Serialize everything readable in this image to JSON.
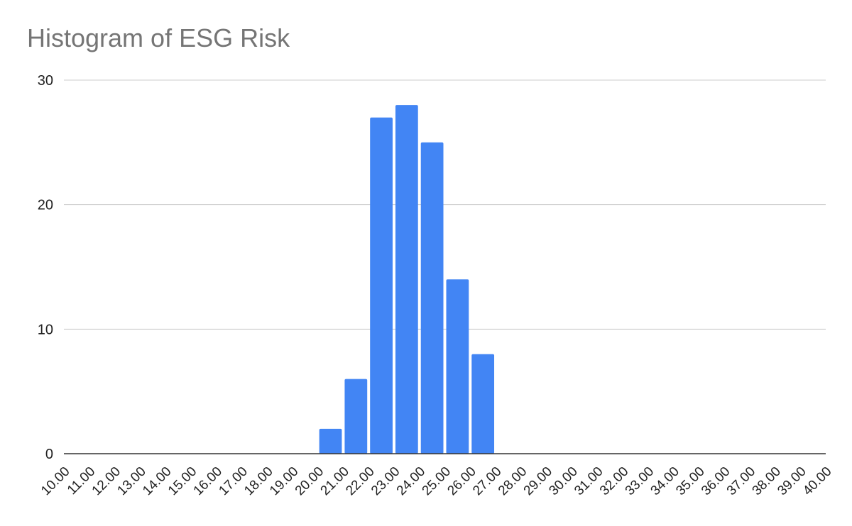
{
  "chart_data": {
    "type": "bar",
    "title": "Histogram of ESG Risk",
    "xlabel": "",
    "ylabel": "",
    "categories": [
      "10.00",
      "11.00",
      "12.00",
      "13.00",
      "14.00",
      "15.00",
      "16.00",
      "17.00",
      "18.00",
      "19.00",
      "20.00",
      "21.00",
      "22.00",
      "23.00",
      "24.00",
      "25.00",
      "26.00",
      "27.00",
      "28.00",
      "29.00",
      "30.00",
      "31.00",
      "32.00",
      "33.00",
      "34.00",
      "35.00",
      "36.00",
      "37.00",
      "38.00",
      "39.00",
      "40.00"
    ],
    "bins": [
      {
        "from": 20,
        "to": 21,
        "value": 2
      },
      {
        "from": 21,
        "to": 22,
        "value": 6
      },
      {
        "from": 22,
        "to": 23,
        "value": 27
      },
      {
        "from": 23,
        "to": 24,
        "value": 28
      },
      {
        "from": 24,
        "to": 25,
        "value": 25
      },
      {
        "from": 25,
        "to": 26,
        "value": 14
      },
      {
        "from": 26,
        "to": 27,
        "value": 8
      }
    ],
    "xlim": [
      10,
      40
    ],
    "ylim": [
      0,
      30
    ],
    "yticks": [
      "0",
      "10",
      "20",
      "30"
    ],
    "grid": true,
    "legend": "none",
    "bar_color": "#4285f4",
    "grid_color": "#cccccc",
    "axis_color": "#333333"
  }
}
